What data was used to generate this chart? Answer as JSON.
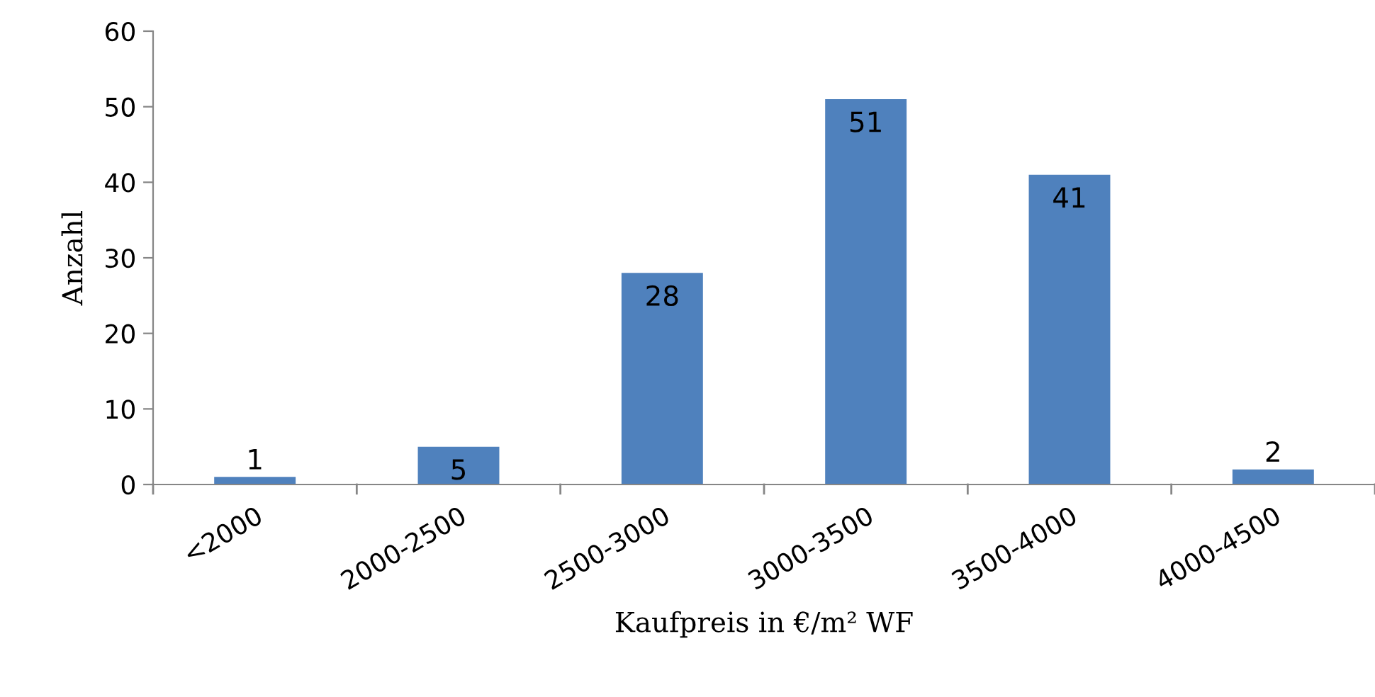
{
  "chart_data": {
    "type": "bar",
    "xlabel": "Kaufpreis in €/m² WF",
    "ylabel": "Anzahl",
    "categories": [
      "<2000",
      "2000-2500",
      "2500-3000",
      "3000-3500",
      "3500-4000",
      "4000-4500"
    ],
    "values": [
      1,
      5,
      28,
      51,
      41,
      2
    ],
    "color": "#4f81bd",
    "ylim": [
      0,
      60
    ],
    "yticks": [
      0,
      10,
      20,
      30,
      40,
      50,
      60
    ],
    "grid": false,
    "data_labels": true
  }
}
